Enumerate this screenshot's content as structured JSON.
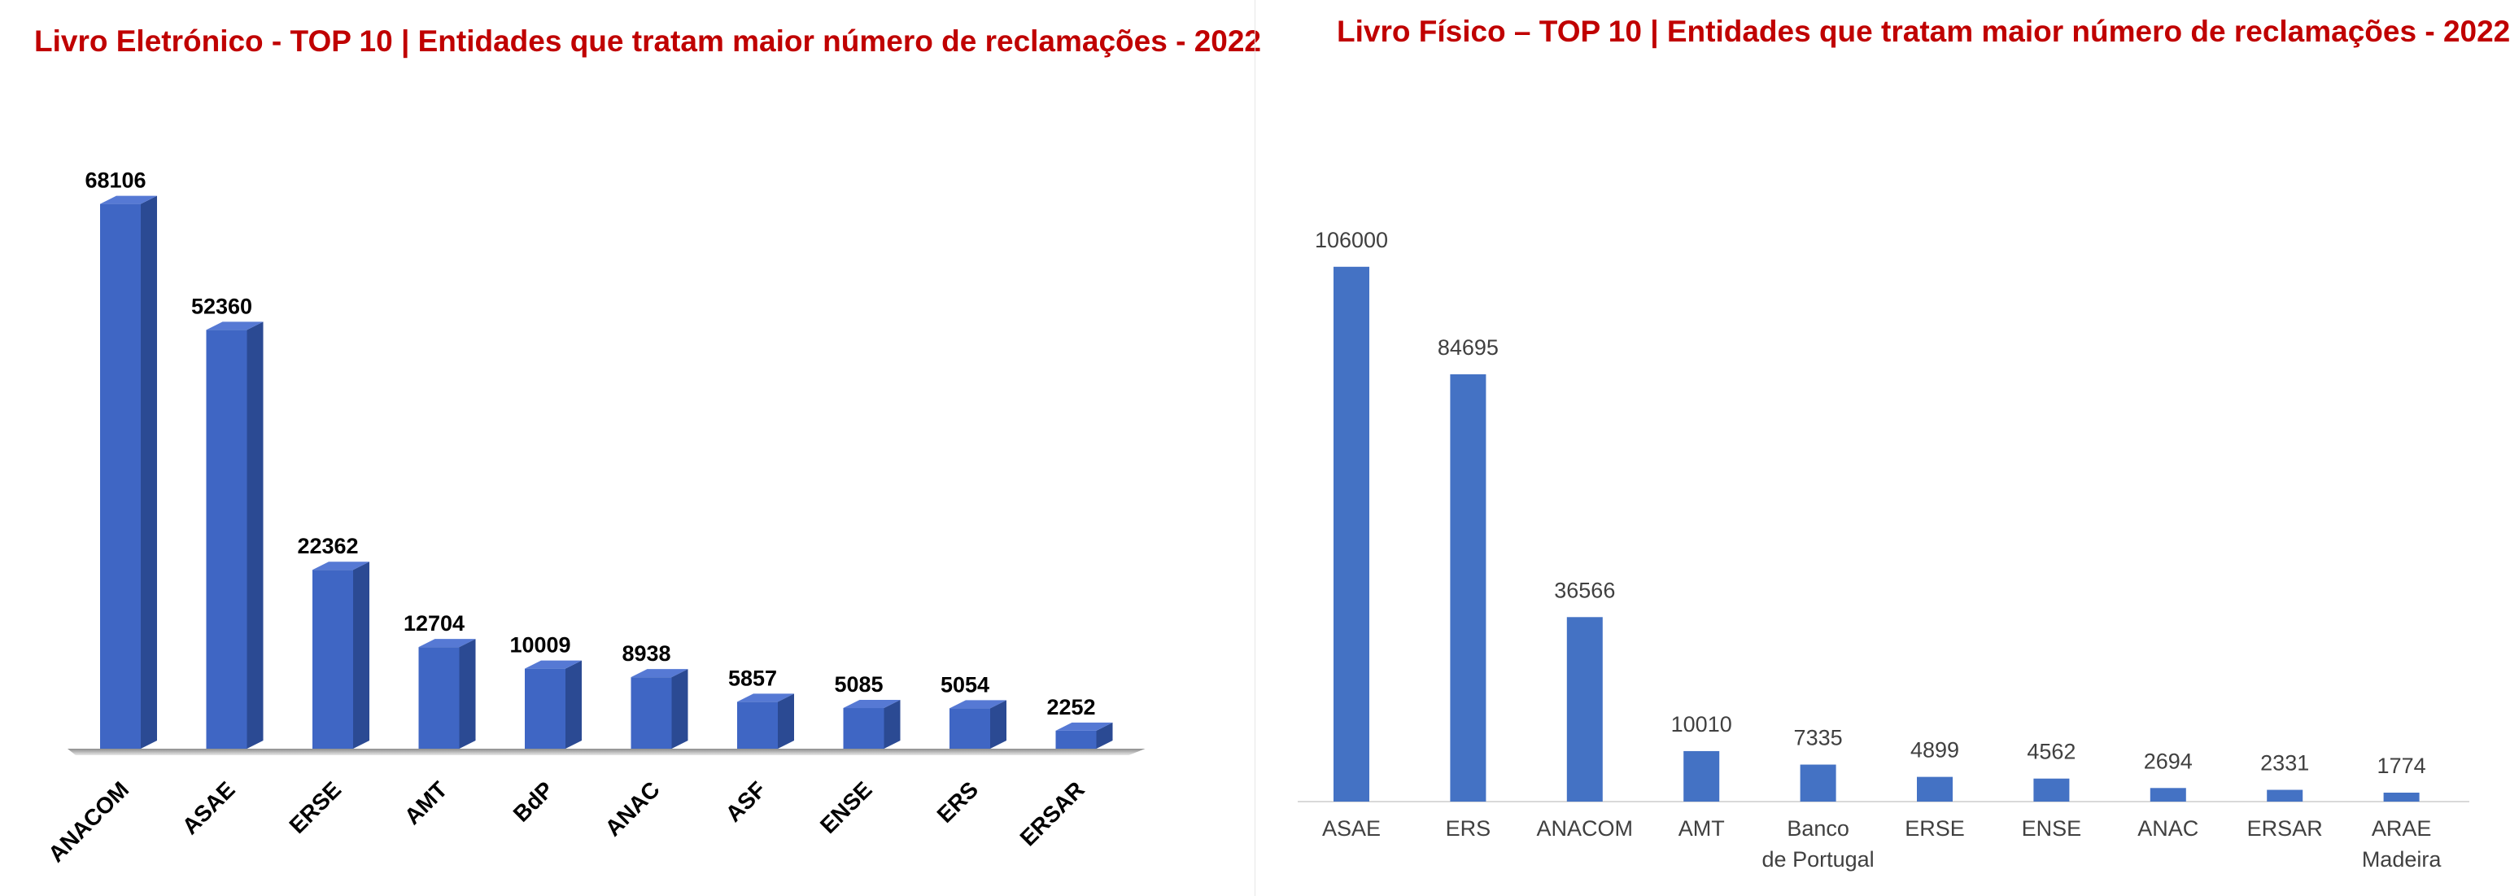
{
  "chart_data": [
    {
      "type": "bar",
      "style": "3d",
      "title": "Livro Eletrónico - TOP 10 | Entidades que tratam maior número de reclamações - 2022",
      "categories": [
        "ANACOM",
        "ASAE",
        "ERSE",
        "AMT",
        "BdP",
        "ANAC",
        "ASF",
        "ENSE",
        "ERS",
        "ERSAR"
      ],
      "values": [
        68106,
        52360,
        22362,
        12704,
        10009,
        8938,
        5857,
        5085,
        5054,
        2252
      ],
      "ylim": [
        0,
        70000
      ],
      "grid": false,
      "colors": {
        "front": "#3f66c4",
        "side": "#2b4a93",
        "top": "#5679d4",
        "title": "#c00000"
      }
    },
    {
      "type": "bar",
      "title": "Livro Físico – TOP 10 | Entidades que tratam maior número de reclamações - 2022",
      "categories": [
        "ASAE",
        "ERS",
        "ANACOM",
        "AMT",
        "Banco de Portugal",
        "ERSE",
        "ENSE",
        "ANAC",
        "ERSAR",
        "ARAE Madeira"
      ],
      "values": [
        106000,
        84695,
        36566,
        10010,
        7335,
        4899,
        4562,
        2694,
        2331,
        1774
      ],
      "ylim": [
        0,
        110000
      ],
      "grid": false,
      "colors": {
        "bar": "#4472c4",
        "axis": "#d9d9d9",
        "title": "#c00000"
      }
    }
  ]
}
